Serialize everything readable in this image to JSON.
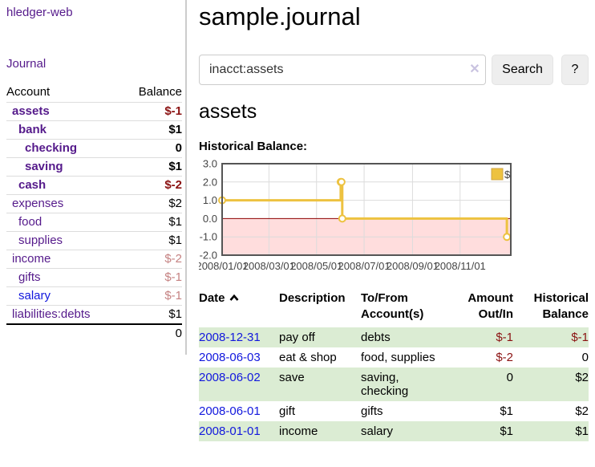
{
  "app": {
    "brand": "hledger-web"
  },
  "sidebar": {
    "journal_link": "Journal",
    "accounts": {
      "account_header": "Account",
      "balance_header": "Balance",
      "rows": [
        {
          "name": "assets",
          "depth": 0,
          "bold": true,
          "link_style": "visited",
          "balance": "$-1",
          "balance_style": "neg"
        },
        {
          "name": "bank",
          "depth": 1,
          "bold": true,
          "link_style": "visited",
          "balance": "$1",
          "balance_style": "plain"
        },
        {
          "name": "checking",
          "depth": 2,
          "bold": true,
          "link_style": "visited",
          "balance": "0",
          "balance_style": "plain"
        },
        {
          "name": "saving",
          "depth": 2,
          "bold": true,
          "link_style": "visited",
          "balance": "$1",
          "balance_style": "plain"
        },
        {
          "name": "cash",
          "depth": 1,
          "bold": true,
          "link_style": "visited",
          "balance": "$-2",
          "balance_style": "neg"
        },
        {
          "name": "expenses",
          "depth": 0,
          "bold": false,
          "link_style": "visited",
          "balance": "$2",
          "balance_style": "plain"
        },
        {
          "name": "food",
          "depth": 1,
          "bold": false,
          "link_style": "visited",
          "balance": "$1",
          "balance_style": "plain"
        },
        {
          "name": "supplies",
          "depth": 1,
          "bold": false,
          "link_style": "visited",
          "balance": "$1",
          "balance_style": "plain"
        },
        {
          "name": "income",
          "depth": 0,
          "bold": false,
          "link_style": "visited",
          "balance": "$-2",
          "balance_style": "neg-soft"
        },
        {
          "name": "gifts",
          "depth": 1,
          "bold": false,
          "link_style": "visited",
          "balance": "$-1",
          "balance_style": "neg-soft"
        },
        {
          "name": "salary",
          "depth": 1,
          "bold": false,
          "link_style": "unvisited",
          "balance": "$-1",
          "balance_style": "neg-soft"
        },
        {
          "name": "liabilities:debts",
          "depth": 0,
          "bold": false,
          "link_style": "visited",
          "balance": "$1",
          "balance_style": "plain"
        }
      ],
      "total": "0"
    }
  },
  "main": {
    "title": "sample.journal",
    "search": {
      "value": "inacct:assets",
      "clear_icon": "✕",
      "search_button": "Search",
      "help_button": "?"
    },
    "account_heading": "assets",
    "register": {
      "headers": {
        "date": "Date",
        "description": "Description",
        "accounts": "To/From Account(s)",
        "amount": "Amount Out/In",
        "balance": "Historical Balance"
      },
      "rows": [
        {
          "date": "2008-12-31",
          "description": "pay off",
          "accounts": "debts",
          "amount": "$-1",
          "amount_style": "neg",
          "balance": "$-1",
          "balance_style": "neg"
        },
        {
          "date": "2008-06-03",
          "description": "eat & shop",
          "accounts": "food, supplies",
          "amount": "$-2",
          "amount_style": "neg",
          "balance": "0",
          "balance_style": "plain"
        },
        {
          "date": "2008-06-02",
          "description": "save",
          "accounts": "saving, checking",
          "amount": "0",
          "amount_style": "plain",
          "balance": "$2",
          "balance_style": "plain"
        },
        {
          "date": "2008-06-01",
          "description": "gift",
          "accounts": "gifts",
          "amount": "$1",
          "amount_style": "plain",
          "balance": "$2",
          "balance_style": "plain"
        },
        {
          "date": "2008-01-01",
          "description": "income",
          "accounts": "salary",
          "amount": "$1",
          "amount_style": "plain",
          "balance": "$1",
          "balance_style": "plain"
        }
      ]
    }
  },
  "chart_data": {
    "type": "line",
    "title": "Historical Balance:",
    "step": true,
    "series": [
      {
        "name": "$",
        "color": "#edc240",
        "points": [
          [
            "2008-01-01",
            1
          ],
          [
            "2008-06-01",
            2
          ],
          [
            "2008-06-02",
            2
          ],
          [
            "2008-06-03",
            0
          ],
          [
            "2008-12-31",
            -1
          ]
        ]
      }
    ],
    "xrange": [
      "2008-01-01",
      "2009-01-05"
    ],
    "ylim": [
      -2,
      3
    ],
    "yticks": [
      "3.0",
      "2.0",
      "1.0",
      "0.0",
      "-1.0",
      "-2.0"
    ],
    "xticks": [
      "2008/01/01",
      "2008/03/01",
      "2008/05/01",
      "2008/07/01",
      "2008/09/01",
      "2008/11/01"
    ],
    "grid": true,
    "legend_position": "top-right",
    "colors": {
      "line": "#edc240",
      "marker_fill": "#ffffff",
      "negative_region": "#ffdddd",
      "zero_line": "#8b0000",
      "plot_border": "#555555",
      "gridline": "#dcdcdc",
      "tick_text": "#444444"
    }
  }
}
